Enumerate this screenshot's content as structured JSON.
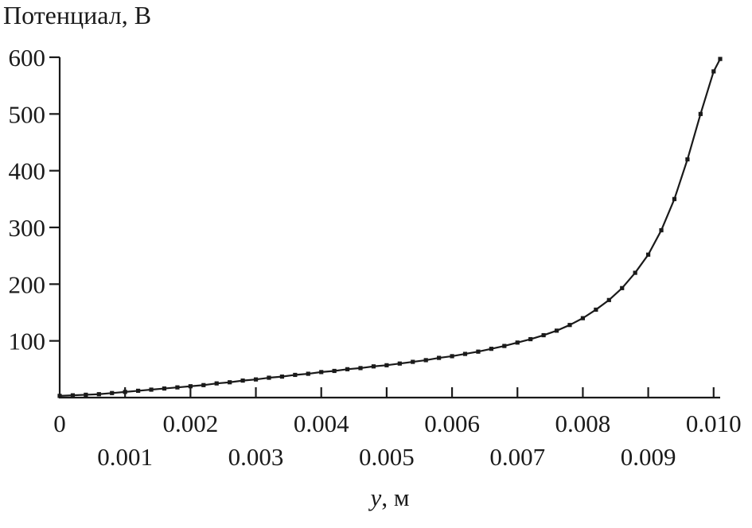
{
  "chart_data": {
    "type": "line",
    "title": "Потенциал, В",
    "ylabel": "Потенциал, В",
    "xlabel": "y, м",
    "xlabel_var": "y",
    "xlabel_unit": ", м",
    "color": "#1a1a1a",
    "grid": false,
    "legend": "none",
    "xlim": [
      0,
      0.0101
    ],
    "ylim": [
      0,
      600
    ],
    "y_ticks": [
      {
        "v": 600,
        "label": "600"
      },
      {
        "v": 500,
        "label": "500"
      },
      {
        "v": 400,
        "label": "400"
      },
      {
        "v": 300,
        "label": "300"
      },
      {
        "v": 200,
        "label": "200"
      },
      {
        "v": 100,
        "label": "100"
      }
    ],
    "x_ticks_row1": [
      {
        "v": 0,
        "label": "0"
      },
      {
        "v": 0.002,
        "label": "0.002"
      },
      {
        "v": 0.004,
        "label": "0.004"
      },
      {
        "v": 0.006,
        "label": "0.006"
      },
      {
        "v": 0.008,
        "label": "0.008"
      },
      {
        "v": 0.01,
        "label": "0.010"
      }
    ],
    "x_ticks_row2": [
      {
        "v": 0.001,
        "label": "0.001"
      },
      {
        "v": 0.003,
        "label": "0.003"
      },
      {
        "v": 0.005,
        "label": "0.005"
      },
      {
        "v": 0.007,
        "label": "0.007"
      },
      {
        "v": 0.009,
        "label": "0.009"
      }
    ],
    "series": [
      {
        "name": "potential-vs-y",
        "marker": "square",
        "x": [
          0,
          0.0002,
          0.0004,
          0.0006,
          0.0008,
          0.001,
          0.0012,
          0.0014,
          0.0016,
          0.0018,
          0.002,
          0.0022,
          0.0024,
          0.0026,
          0.0028,
          0.003,
          0.0032,
          0.0034,
          0.0036,
          0.0038,
          0.004,
          0.0042,
          0.0044,
          0.0046,
          0.0048,
          0.005,
          0.0052,
          0.0054,
          0.0056,
          0.0058,
          0.006,
          0.0062,
          0.0064,
          0.0066,
          0.0068,
          0.007,
          0.0072,
          0.0074,
          0.0076,
          0.0078,
          0.008,
          0.0082,
          0.0084,
          0.0086,
          0.0088,
          0.009,
          0.0092,
          0.0094,
          0.0096,
          0.0098,
          0.01,
          0.0101
        ],
        "y": [
          3,
          4,
          5,
          6,
          8,
          10,
          12,
          14,
          16,
          18,
          20,
          22,
          25,
          27,
          30,
          32,
          35,
          37,
          40,
          42,
          45,
          47,
          50,
          52,
          55,
          57,
          60,
          63,
          66,
          70,
          73,
          77,
          81,
          86,
          91,
          97,
          103,
          110,
          118,
          128,
          140,
          155,
          172,
          193,
          220,
          252,
          295,
          350,
          420,
          500,
          575,
          597
        ]
      }
    ]
  }
}
